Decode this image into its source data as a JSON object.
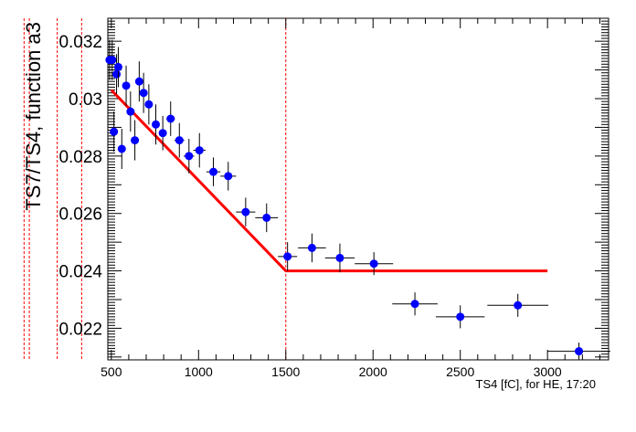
{
  "chart_data": {
    "type": "scatter",
    "title": "",
    "xlabel": "TS4 [fC], for HE, 17:20",
    "ylabel": "TS7/TS4, function a3",
    "xlim": [
      480,
      3350
    ],
    "ylim": [
      0.0209,
      0.0328
    ],
    "x_ticks": [
      500,
      1000,
      1500,
      2000,
      2500,
      3000
    ],
    "x_tick_labels": [
      "500",
      "1000",
      "1500",
      "2000",
      "2500",
      "3000"
    ],
    "y_ticks": [
      0.022,
      0.024,
      0.026,
      0.028,
      0.03,
      0.032
    ],
    "y_tick_labels": [
      "0.022",
      "0.024",
      "0.026",
      "0.028",
      "0.03",
      "0.032"
    ],
    "marker_color": "#0000ff",
    "fit_color": "#ff0000",
    "points": [
      {
        "x": 490,
        "y": 0.03135,
        "xerr": 10,
        "yerr": 0.0007
      },
      {
        "x": 505,
        "y": 0.03135,
        "xerr": 10,
        "yerr": 0.0007
      },
      {
        "x": 515,
        "y": 0.02885,
        "xerr": 10,
        "yerr": 0.0007
      },
      {
        "x": 530,
        "y": 0.03085,
        "xerr": 10,
        "yerr": 0.0007
      },
      {
        "x": 540,
        "y": 0.0311,
        "xerr": 12,
        "yerr": 0.0007
      },
      {
        "x": 560,
        "y": 0.02825,
        "xerr": 14,
        "yerr": 0.0007
      },
      {
        "x": 585,
        "y": 0.03045,
        "xerr": 15,
        "yerr": 0.0007
      },
      {
        "x": 610,
        "y": 0.02955,
        "xerr": 15,
        "yerr": 0.0007
      },
      {
        "x": 635,
        "y": 0.02855,
        "xerr": 15,
        "yerr": 0.0007
      },
      {
        "x": 660,
        "y": 0.0306,
        "xerr": 15,
        "yerr": 0.0007
      },
      {
        "x": 685,
        "y": 0.0302,
        "xerr": 15,
        "yerr": 0.0007
      },
      {
        "x": 715,
        "y": 0.0298,
        "xerr": 18,
        "yerr": 0.0007
      },
      {
        "x": 755,
        "y": 0.0291,
        "xerr": 20,
        "yerr": 0.0007
      },
      {
        "x": 795,
        "y": 0.0288,
        "xerr": 20,
        "yerr": 0.0006
      },
      {
        "x": 840,
        "y": 0.0293,
        "xerr": 25,
        "yerr": 0.0006
      },
      {
        "x": 890,
        "y": 0.02855,
        "xerr": 28,
        "yerr": 0.0006
      },
      {
        "x": 945,
        "y": 0.028,
        "xerr": 30,
        "yerr": 0.0006
      },
      {
        "x": 1005,
        "y": 0.0282,
        "xerr": 35,
        "yerr": 0.0006
      },
      {
        "x": 1085,
        "y": 0.02745,
        "xerr": 40,
        "yerr": 0.0005
      },
      {
        "x": 1170,
        "y": 0.0273,
        "xerr": 45,
        "yerr": 0.0005
      },
      {
        "x": 1270,
        "y": 0.02605,
        "xerr": 55,
        "yerr": 0.0005
      },
      {
        "x": 1390,
        "y": 0.02585,
        "xerr": 65,
        "yerr": 0.0005
      },
      {
        "x": 1510,
        "y": 0.0245,
        "xerr": 55,
        "yerr": 0.0005
      },
      {
        "x": 1650,
        "y": 0.0248,
        "xerr": 80,
        "yerr": 0.0005
      },
      {
        "x": 1810,
        "y": 0.02445,
        "xerr": 85,
        "yerr": 0.0005
      },
      {
        "x": 2005,
        "y": 0.02425,
        "xerr": 110,
        "yerr": 0.0004
      },
      {
        "x": 2240,
        "y": 0.02285,
        "xerr": 130,
        "yerr": 0.0004
      },
      {
        "x": 2500,
        "y": 0.0224,
        "xerr": 140,
        "yerr": 0.0004
      },
      {
        "x": 2830,
        "y": 0.0228,
        "xerr": 175,
        "yerr": 0.0004
      },
      {
        "x": 3180,
        "y": 0.0212,
        "xerr": 180,
        "yerr": 0.0003
      }
    ],
    "fit_line": [
      [
        500,
        0.0303
      ],
      [
        1500,
        0.024
      ],
      [
        3000,
        0.024
      ]
    ],
    "vertical_markers_x": [
      0,
      30,
      190,
      330,
      1500
    ]
  }
}
